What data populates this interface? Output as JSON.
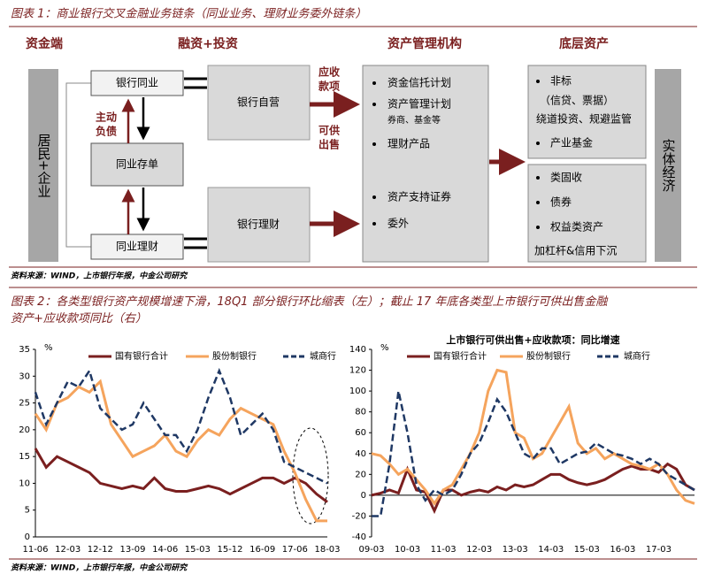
{
  "figure1": {
    "caption": "图表 1：商业银行交叉金融业务链条（同业业务、理财业务委外链条）",
    "headers": [
      "资金端",
      "融资+投资",
      "资产管理机构",
      "底层资产"
    ],
    "left_box": "居民+企业",
    "right_box": "实体经济",
    "boxes": [
      "银行同业",
      "同业存单",
      "同业理财",
      "银行自营",
      "银行理财"
    ],
    "active_liability": [
      "主动",
      "负债"
    ],
    "receivables": [
      "应收",
      "款项"
    ],
    "available_for_sale": [
      "可供",
      "出售"
    ],
    "asset_management": [
      "资金信托计划",
      "资产管理计划",
      "券商、基金等",
      "理财产品",
      "资产支持证券",
      "委外"
    ],
    "underlying_upper": [
      "非标",
      "（信贷、票据）",
      "绕道投资、规避监管",
      "产业基金"
    ],
    "underlying_lower": [
      "类固收",
      "债券",
      "权益类资产",
      "加杠杆&信用下沉"
    ],
    "source": "资料来源：WIND，上市银行年报，中金公司研究"
  },
  "figure2": {
    "caption": "图表 2：各类型银行资产规模增速下滑，18Q1 部分银行环比缩表（左）；截止 17 年底各类型上市银行可供出售金融资产+应收款项同比（右）",
    "source": "资料来源：WIND，上市银行年报，中金公司研究"
  },
  "chart_data": [
    {
      "type": "line",
      "y_label": "%",
      "categories": [
        "11-06",
        null,
        null,
        "12-03",
        null,
        null,
        "12-12",
        null,
        null,
        "13-09",
        null,
        null,
        "14-06",
        null,
        null,
        "15-03",
        null,
        null,
        "15-12",
        null,
        null,
        "16-09",
        null,
        null,
        "17-06",
        null,
        null,
        "18-03"
      ],
      "ylim": [
        0,
        35
      ],
      "yticks": [
        0,
        5,
        10,
        15,
        20,
        25,
        30,
        35
      ],
      "series": [
        {
          "name": "国有银行合计",
          "color": "#7a1f1f",
          "values": [
            16.5,
            13,
            15,
            14,
            13,
            12,
            10,
            9.5,
            9,
            9.5,
            9,
            11,
            9,
            8.5,
            8.5,
            9,
            9.5,
            9,
            8,
            9,
            10,
            11,
            11,
            10,
            11,
            10,
            8,
            6.5
          ]
        },
        {
          "name": "股份制银行",
          "color": "#f5a45d",
          "values": [
            23,
            20,
            25,
            26,
            28,
            27,
            29,
            21,
            18,
            15,
            16,
            17,
            19,
            16,
            15,
            18,
            20,
            19,
            22,
            24,
            23,
            22,
            21,
            16,
            12,
            7,
            3,
            3
          ]
        },
        {
          "name": "城商行",
          "color": "#1f3864",
          "dashed": true,
          "values": [
            27,
            21,
            25,
            29,
            28,
            31,
            24,
            22,
            20,
            21,
            25,
            22,
            19,
            19,
            16,
            20,
            26,
            31,
            26,
            19,
            21,
            23,
            20,
            14,
            13,
            12,
            11,
            10
          ]
        }
      ]
    },
    {
      "type": "line",
      "title": "上市银行可供出售+应收款项：同比增速",
      "y_label": "%",
      "categories": [
        "09-03",
        null,
        null,
        null,
        "10-03",
        null,
        null,
        null,
        "11-03",
        null,
        null,
        null,
        "12-03",
        null,
        null,
        null,
        "13-03",
        null,
        null,
        null,
        "14-03",
        null,
        null,
        null,
        "15-03",
        null,
        null,
        null,
        "16-03",
        null,
        null,
        null,
        "17-03",
        null,
        null,
        null,
        null
      ],
      "ylim": [
        -40,
        140
      ],
      "yticks": [
        -40,
        -20,
        0,
        20,
        40,
        60,
        80,
        100,
        120,
        140
      ],
      "series": [
        {
          "name": "国有银行合计",
          "color": "#7a1f1f",
          "values": [
            0,
            2,
            5,
            2,
            25,
            5,
            3,
            -15,
            5,
            5,
            0,
            3,
            5,
            3,
            8,
            5,
            10,
            8,
            10,
            15,
            20,
            20,
            15,
            12,
            10,
            12,
            15,
            20,
            25,
            28,
            25,
            25,
            22,
            30,
            25,
            10,
            5
          ]
        },
        {
          "name": "股份制银行",
          "color": "#f5a45d",
          "values": [
            40,
            38,
            30,
            20,
            25,
            15,
            5,
            -8,
            5,
            10,
            25,
            40,
            60,
            100,
            120,
            118,
            60,
            55,
            35,
            40,
            55,
            70,
            85,
            50,
            40,
            45,
            35,
            40,
            35,
            30,
            28,
            25,
            30,
            20,
            5,
            -5,
            -8
          ]
        },
        {
          "name": "城商行",
          "color": "#1f3864",
          "dashed": true,
          "values": [
            -20,
            -20,
            30,
            100,
            60,
            10,
            -5,
            5,
            0,
            5,
            20,
            40,
            50,
            70,
            92,
            80,
            60,
            40,
            35,
            45,
            45,
            30,
            35,
            40,
            42,
            50,
            45,
            40,
            38,
            35,
            30,
            35,
            30,
            20,
            15,
            10,
            5
          ]
        }
      ]
    }
  ]
}
